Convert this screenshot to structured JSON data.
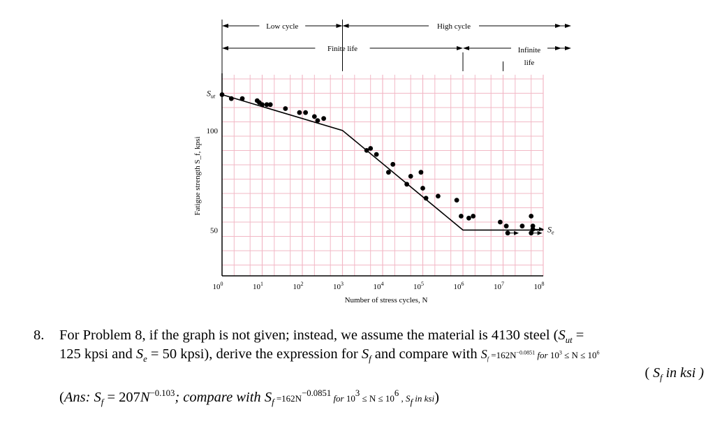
{
  "chart_data": {
    "type": "scatter",
    "xscale": "log",
    "xlim": [
      1,
      100000000
    ],
    "ylim": [
      27,
      128
    ],
    "ylabel": "Fatigue strength S_f, kpsi",
    "xlabel": "Number of stress cycles, N",
    "x_ticks": [
      {
        "value": 1,
        "base": "10",
        "exp": "0"
      },
      {
        "value": 10,
        "base": "10",
        "exp": "1"
      },
      {
        "value": 100,
        "base": "10",
        "exp": "2"
      },
      {
        "value": 1000,
        "base": "10",
        "exp": "3"
      },
      {
        "value": 10000,
        "base": "10",
        "exp": "4"
      },
      {
        "value": 100000,
        "base": "10",
        "exp": "5"
      },
      {
        "value": 1000000,
        "base": "10",
        "exp": "6"
      },
      {
        "value": 10000000,
        "base": "10",
        "exp": "7"
      },
      {
        "value": 100000000,
        "base": "10",
        "exp": "8"
      }
    ],
    "y_ticks": [
      {
        "value": 100,
        "label": "100"
      },
      {
        "value": 50,
        "label": "50"
      }
    ],
    "sut_label": {
      "main": "S",
      "sub": "ut",
      "value": 118
    },
    "se_label": {
      "main": "S",
      "sub": "e",
      "value": 50
    },
    "regions": [
      {
        "label": "Low cycle",
        "from": 1,
        "to": 1000,
        "row": 1
      },
      {
        "label": "High cycle",
        "from": 1000,
        "to": 100000000,
        "row": 1,
        "open_right": true
      },
      {
        "label": "Finite life",
        "from": 1,
        "to": 1000000,
        "row": 2
      },
      {
        "label_lines": [
          "Infinite",
          "life"
        ],
        "from": 1000000,
        "to": 100000000,
        "row": 2,
        "open_right": true
      }
    ],
    "fit_line": [
      [
        1,
        118
      ],
      [
        1000,
        100
      ],
      [
        1000000,
        50
      ],
      [
        100000000,
        50
      ]
    ],
    "points": [
      [
        1,
        118
      ],
      [
        1.7,
        116
      ],
      [
        3.2,
        116
      ],
      [
        7.5,
        115
      ],
      [
        8.5,
        114
      ],
      [
        10,
        113
      ],
      [
        13,
        113
      ],
      [
        16,
        113
      ],
      [
        38,
        111
      ],
      [
        85,
        109
      ],
      [
        120,
        109
      ],
      [
        200,
        107
      ],
      [
        240,
        105
      ],
      [
        340,
        106
      ],
      [
        4000,
        90
      ],
      [
        5000,
        91
      ],
      [
        7000,
        88
      ],
      [
        14000,
        79
      ],
      [
        18000,
        83
      ],
      [
        40000,
        73
      ],
      [
        50000,
        77
      ],
      [
        90000,
        79
      ],
      [
        100000,
        71
      ],
      [
        120000,
        66
      ],
      [
        240000,
        67
      ],
      [
        700000,
        65
      ],
      [
        900000,
        57
      ],
      [
        1400000,
        56
      ],
      [
        1800000,
        57
      ],
      [
        8500000,
        54
      ],
      [
        12000000,
        52
      ],
      [
        30000000,
        52
      ],
      [
        50000000,
        57
      ],
      [
        55000000,
        52
      ]
    ],
    "runouts": [
      [
        13000000,
        48.5
      ],
      [
        50000000,
        48.5
      ],
      [
        55000000,
        50.4
      ]
    ]
  },
  "problem": {
    "number": "8.",
    "t1": "For Problem 8, if the graph is not given; instead, we assume the material is 4130 steel (",
    "sut_main": "S",
    "sut_sub": "ut",
    "t2": " =",
    "t3": "125 kpsi and ",
    "se_main": "S",
    "se_sub": "e",
    "t4": " = 50 kpsi), derive the expression for ",
    "sf_main": "S",
    "sf_sub": "f",
    "t5": " and compare with ",
    "cmp_lhs": "S",
    "cmp_lhs_sub": "f",
    "cmp_coef": " =162N",
    "cmp_exp": "−0.0851",
    "cmp_for": " for ",
    "cmp_range_a": "10",
    "cmp_range_a_exp": "3",
    "cmp_range_mid": " ≤ N ≤ ",
    "cmp_range_b": "10",
    "cmp_range_b_exp": "6",
    "unit_open": "( ",
    "unit_main": "S",
    "unit_sub": "f",
    "unit_rest": " in ksi )"
  },
  "answer": {
    "open": "(",
    "ans_label": "Ans: ",
    "sf_main": "S",
    "sf_sub": "f",
    "eq1": " = 207",
    "eq1_n": "N",
    "eq1_exp": "−0.103",
    "mid": "; compare with ",
    "sf2_main": "S",
    "sf2_sub": "f",
    "eq2": " =162N",
    "eq2_exp": "−0.0851",
    "for_text": " for ",
    "range_a": "10",
    "range_a_exp": "3",
    "range_mid": " ≤ N ≤ ",
    "range_b": "10",
    "range_b_exp": "6",
    "comma": " , ",
    "sf3_main": "S",
    "sf3_sub": "f",
    "unit": " in ksi",
    "close": ")"
  }
}
